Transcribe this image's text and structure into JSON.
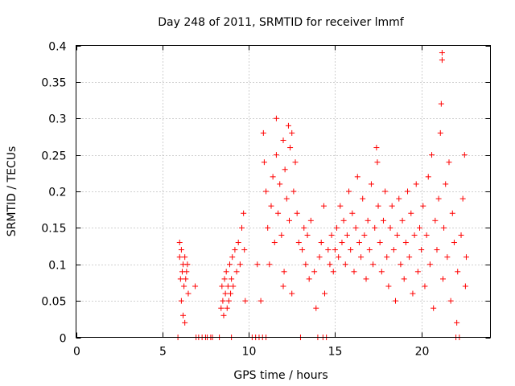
{
  "chart_data": {
    "type": "scatter",
    "title": "Day 248 of 2011, SRMTID for receiver lmmf",
    "xlabel": "GPS time / hours",
    "ylabel": "SRMTID / TECUs",
    "xlim": [
      0,
      24
    ],
    "ylim": [
      0,
      0.4
    ],
    "xticks": [
      0,
      5,
      10,
      15,
      20
    ],
    "xtick_labels": [
      "0",
      "5",
      "10",
      "15",
      "20"
    ],
    "yticks": [
      0,
      0.05,
      0.1,
      0.15,
      0.2,
      0.25,
      0.3,
      0.35,
      0.4
    ],
    "ytick_labels": [
      "0",
      "0.05",
      "0.1",
      "0.15",
      "0.2",
      "0.25",
      "0.3",
      "0.35",
      "0.4"
    ],
    "grid": true,
    "marker": "+",
    "color": "#ff0000",
    "series": [
      {
        "name": "SRMTID",
        "points": [
          [
            5.9,
            0.0
          ],
          [
            6.0,
            0.13
          ],
          [
            6.0,
            0.11
          ],
          [
            6.05,
            0.08
          ],
          [
            6.1,
            0.12
          ],
          [
            6.1,
            0.05
          ],
          [
            6.15,
            0.09
          ],
          [
            6.2,
            0.1
          ],
          [
            6.2,
            0.03
          ],
          [
            6.25,
            0.07
          ],
          [
            6.3,
            0.11
          ],
          [
            6.3,
            0.02
          ],
          [
            6.35,
            0.08
          ],
          [
            6.4,
            0.09
          ],
          [
            6.45,
            0.1
          ],
          [
            6.5,
            0.06
          ],
          [
            6.9,
            0.07
          ],
          [
            6.95,
            0.0
          ],
          [
            7.1,
            0.0
          ],
          [
            7.3,
            0.0
          ],
          [
            7.5,
            0.0
          ],
          [
            7.6,
            0.0
          ],
          [
            7.8,
            0.0
          ],
          [
            7.9,
            0.0
          ],
          [
            8.3,
            0.0
          ],
          [
            8.4,
            0.04
          ],
          [
            8.45,
            0.07
          ],
          [
            8.5,
            0.05
          ],
          [
            8.55,
            0.03
          ],
          [
            8.6,
            0.08
          ],
          [
            8.65,
            0.06
          ],
          [
            8.7,
            0.09
          ],
          [
            8.75,
            0.04
          ],
          [
            8.8,
            0.07
          ],
          [
            8.85,
            0.05
          ],
          [
            8.9,
            0.1
          ],
          [
            8.95,
            0.06
          ],
          [
            9.0,
            0.08
          ],
          [
            9.0,
            0.0
          ],
          [
            9.05,
            0.11
          ],
          [
            9.1,
            0.07
          ],
          [
            9.2,
            0.12
          ],
          [
            9.3,
            0.09
          ],
          [
            9.4,
            0.13
          ],
          [
            9.5,
            0.1
          ],
          [
            9.6,
            0.15
          ],
          [
            9.7,
            0.17
          ],
          [
            9.75,
            0.12
          ],
          [
            9.8,
            0.05
          ],
          [
            10.2,
            0.0
          ],
          [
            10.4,
            0.0
          ],
          [
            10.5,
            0.1
          ],
          [
            10.6,
            0.0
          ],
          [
            10.7,
            0.05
          ],
          [
            10.8,
            0.0
          ],
          [
            10.85,
            0.28
          ],
          [
            10.9,
            0.24
          ],
          [
            11.0,
            0.2
          ],
          [
            11.0,
            0.0
          ],
          [
            11.1,
            0.15
          ],
          [
            11.2,
            0.1
          ],
          [
            11.3,
            0.18
          ],
          [
            11.4,
            0.22
          ],
          [
            11.5,
            0.13
          ],
          [
            11.6,
            0.25
          ],
          [
            11.6,
            0.3
          ],
          [
            11.7,
            0.17
          ],
          [
            11.8,
            0.21
          ],
          [
            11.9,
            0.14
          ],
          [
            12.0,
            0.27
          ],
          [
            12.05,
            0.09
          ],
          [
            12.1,
            0.23
          ],
          [
            12.2,
            0.19
          ],
          [
            12.3,
            0.29
          ],
          [
            12.35,
            0.16
          ],
          [
            12.4,
            0.26
          ],
          [
            12.5,
            0.28
          ],
          [
            12.6,
            0.2
          ],
          [
            12.7,
            0.24
          ],
          [
            12.8,
            0.17
          ],
          [
            12.9,
            0.13
          ],
          [
            12.5,
            0.06
          ],
          [
            12.0,
            0.07
          ],
          [
            13.0,
            0.0
          ],
          [
            13.1,
            0.12
          ],
          [
            13.2,
            0.15
          ],
          [
            13.3,
            0.1
          ],
          [
            13.4,
            0.14
          ],
          [
            13.5,
            0.08
          ],
          [
            13.6,
            0.16
          ],
          [
            13.8,
            0.09
          ],
          [
            13.9,
            0.04
          ],
          [
            14.0,
            0.0
          ],
          [
            14.1,
            0.11
          ],
          [
            14.2,
            0.13
          ],
          [
            14.3,
            0.0
          ],
          [
            14.35,
            0.18
          ],
          [
            14.4,
            0.06
          ],
          [
            14.5,
            0.0
          ],
          [
            14.6,
            0.12
          ],
          [
            14.7,
            0.1
          ],
          [
            14.8,
            0.14
          ],
          [
            14.9,
            0.09
          ],
          [
            15.0,
            0.12
          ],
          [
            15.1,
            0.15
          ],
          [
            15.2,
            0.11
          ],
          [
            15.3,
            0.18
          ],
          [
            15.4,
            0.13
          ],
          [
            15.5,
            0.16
          ],
          [
            15.6,
            0.1
          ],
          [
            15.7,
            0.14
          ],
          [
            15.8,
            0.2
          ],
          [
            15.9,
            0.12
          ],
          [
            16.0,
            0.17
          ],
          [
            16.1,
            0.09
          ],
          [
            16.2,
            0.15
          ],
          [
            16.3,
            0.22
          ],
          [
            16.4,
            0.13
          ],
          [
            16.5,
            0.11
          ],
          [
            16.6,
            0.19
          ],
          [
            16.7,
            0.14
          ],
          [
            16.8,
            0.08
          ],
          [
            16.9,
            0.16
          ],
          [
            17.0,
            0.12
          ],
          [
            17.1,
            0.21
          ],
          [
            17.2,
            0.1
          ],
          [
            17.3,
            0.15
          ],
          [
            17.4,
            0.26
          ],
          [
            17.45,
            0.24
          ],
          [
            17.5,
            0.18
          ],
          [
            17.6,
            0.13
          ],
          [
            17.7,
            0.09
          ],
          [
            17.8,
            0.16
          ],
          [
            17.9,
            0.2
          ],
          [
            18.0,
            0.11
          ],
          [
            18.1,
            0.07
          ],
          [
            18.2,
            0.15
          ],
          [
            18.3,
            0.18
          ],
          [
            18.4,
            0.12
          ],
          [
            18.5,
            0.05
          ],
          [
            18.6,
            0.14
          ],
          [
            18.7,
            0.19
          ],
          [
            18.8,
            0.1
          ],
          [
            18.9,
            0.16
          ],
          [
            19.0,
            0.08
          ],
          [
            19.1,
            0.13
          ],
          [
            19.2,
            0.2
          ],
          [
            19.3,
            0.11
          ],
          [
            19.4,
            0.17
          ],
          [
            19.5,
            0.06
          ],
          [
            19.6,
            0.14
          ],
          [
            19.7,
            0.21
          ],
          [
            19.8,
            0.09
          ],
          [
            19.9,
            0.15
          ],
          [
            20.0,
            0.12
          ],
          [
            20.1,
            0.18
          ],
          [
            20.2,
            0.07
          ],
          [
            20.3,
            0.14
          ],
          [
            20.4,
            0.22
          ],
          [
            20.5,
            0.1
          ],
          [
            20.6,
            0.25
          ],
          [
            20.7,
            0.04
          ],
          [
            20.8,
            0.16
          ],
          [
            20.9,
            0.12
          ],
          [
            21.0,
            0.19
          ],
          [
            21.1,
            0.28
          ],
          [
            21.15,
            0.32
          ],
          [
            21.2,
            0.39
          ],
          [
            21.2,
            0.38
          ],
          [
            21.25,
            0.08
          ],
          [
            21.3,
            0.15
          ],
          [
            21.4,
            0.21
          ],
          [
            21.5,
            0.11
          ],
          [
            21.6,
            0.24
          ],
          [
            21.7,
            0.05
          ],
          [
            21.8,
            0.17
          ],
          [
            21.9,
            0.13
          ],
          [
            22.0,
            0.0
          ],
          [
            22.05,
            0.02
          ],
          [
            22.1,
            0.09
          ],
          [
            22.2,
            0.0
          ],
          [
            22.3,
            0.14
          ],
          [
            22.4,
            0.19
          ],
          [
            22.5,
            0.25
          ],
          [
            22.55,
            0.07
          ],
          [
            22.6,
            0.11
          ]
        ]
      }
    ]
  }
}
